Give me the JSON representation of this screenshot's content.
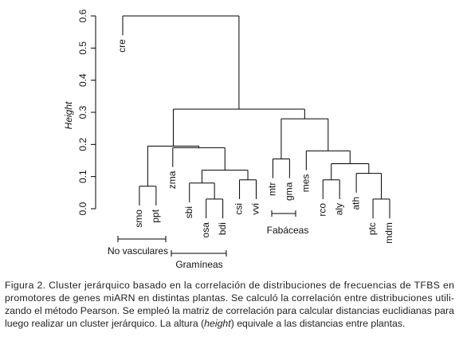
{
  "chart_data": {
    "type": "dendrogram",
    "ylabel": "Height",
    "leaves": [
      "cre",
      "smo",
      "ppt",
      "zma",
      "sbi",
      "osa",
      "bdi",
      "csi",
      "vvi",
      "mtr",
      "gma",
      "mes",
      "rco",
      "aly",
      "ath",
      "ptc",
      "mdm"
    ],
    "merge": [
      [
        -2,
        -3
      ],
      [
        -6,
        -7
      ],
      [
        -5,
        2
      ],
      [
        -8,
        -9
      ],
      [
        3,
        4
      ],
      [
        -4,
        5
      ],
      [
        1,
        6
      ],
      [
        -10,
        -11
      ],
      [
        -13,
        -14
      ],
      [
        -16,
        -17
      ],
      [
        -15,
        10
      ],
      [
        9,
        11
      ],
      [
        -12,
        12
      ],
      [
        8,
        13
      ],
      [
        7,
        14
      ],
      [
        -1,
        15
      ]
    ],
    "heights": [
      0.07,
      0.03,
      0.08,
      0.09,
      0.12,
      0.19,
      0.195,
      0.155,
      0.09,
      0.03,
      0.11,
      0.14,
      0.18,
      0.28,
      0.31,
      0.6
    ],
    "ylim": [
      0,
      0.6
    ],
    "yticks": [
      {
        "value": 0,
        "label": "0.0"
      },
      0.1,
      0.2,
      0.3,
      0.4,
      0.5,
      0.6
    ],
    "groups": [
      {
        "label": "No vasculares"
      },
      {
        "label": "Gramíneas"
      },
      {
        "label": "Fabáceas"
      }
    ]
  },
  "caption": [
    "Figura 2. Cluster jerárquico basado en la correlación de distribuciones de frecuencias de TFBS en",
    "promotores de genes miARN en distintas plantas. Se calculó la correlación entre distribuciones utili-",
    "zando el método Pearson. Se empleó la matriz de correlación para calcular distancias euclidianas para",
    [
      "luego realizar un cluster jerárquico. La altura (",
      "height",
      ") equivale a las distancias entre plantas."
    ]
  ]
}
